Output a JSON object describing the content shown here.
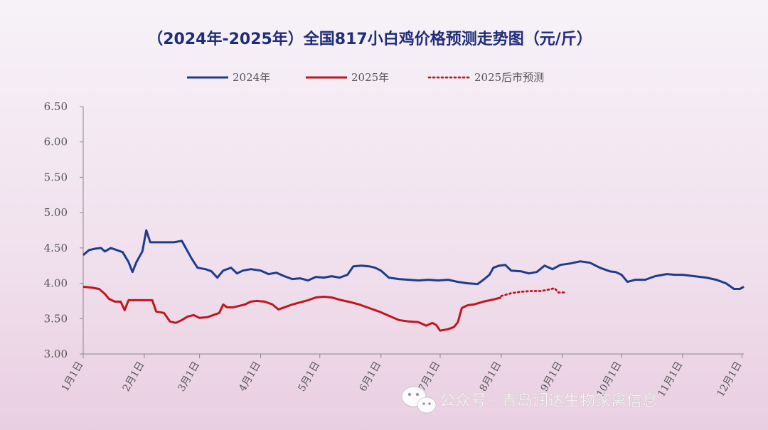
{
  "chart_data": {
    "type": "line",
    "title": "（2024年-2025年）全国817小白鸡价格预测走势图（元/斤）",
    "ylim": [
      3.0,
      6.5
    ],
    "yticks": [
      "3.00",
      "3.50",
      "4.00",
      "4.50",
      "5.00",
      "5.50",
      "6.00",
      "6.50"
    ],
    "xlim": [
      0,
      335
    ],
    "xticks": [
      {
        "x": 0,
        "label": "1月1日"
      },
      {
        "x": 31,
        "label": "2月1日"
      },
      {
        "x": 59,
        "label": "3月1日"
      },
      {
        "x": 90,
        "label": "4月1日"
      },
      {
        "x": 120,
        "label": "5月1日"
      },
      {
        "x": 151,
        "label": "6月1日"
      },
      {
        "x": 181,
        "label": "7月1日"
      },
      {
        "x": 212,
        "label": "8月1日"
      },
      {
        "x": 243,
        "label": "9月1日"
      },
      {
        "x": 273,
        "label": "10月1日"
      },
      {
        "x": 304,
        "label": "11月1日"
      },
      {
        "x": 334,
        "label": "12月1日"
      }
    ],
    "legend_position": "top",
    "grid": false,
    "series": [
      {
        "name": "2024年",
        "color": "#1c3c8c",
        "style": "solid",
        "points": [
          [
            0,
            4.4
          ],
          [
            3,
            4.47
          ],
          [
            6,
            4.49
          ],
          [
            9,
            4.5
          ],
          [
            11,
            4.45
          ],
          [
            14,
            4.5
          ],
          [
            17,
            4.47
          ],
          [
            20,
            4.44
          ],
          [
            23,
            4.3
          ],
          [
            25,
            4.16
          ],
          [
            27,
            4.3
          ],
          [
            30,
            4.45
          ],
          [
            32,
            4.75
          ],
          [
            34,
            4.58
          ],
          [
            40,
            4.58
          ],
          [
            46,
            4.58
          ],
          [
            50,
            4.6
          ],
          [
            52,
            4.5
          ],
          [
            55,
            4.35
          ],
          [
            58,
            4.22
          ],
          [
            62,
            4.2
          ],
          [
            65,
            4.17
          ],
          [
            68,
            4.08
          ],
          [
            71,
            4.18
          ],
          [
            75,
            4.22
          ],
          [
            78,
            4.14
          ],
          [
            81,
            4.18
          ],
          [
            85,
            4.2
          ],
          [
            90,
            4.18
          ],
          [
            94,
            4.13
          ],
          [
            98,
            4.15
          ],
          [
            102,
            4.1
          ],
          [
            106,
            4.06
          ],
          [
            110,
            4.07
          ],
          [
            114,
            4.04
          ],
          [
            118,
            4.09
          ],
          [
            122,
            4.08
          ],
          [
            126,
            4.1
          ],
          [
            130,
            4.08
          ],
          [
            134,
            4.12
          ],
          [
            137,
            4.24
          ],
          [
            141,
            4.25
          ],
          [
            145,
            4.24
          ],
          [
            148,
            4.22
          ],
          [
            151,
            4.18
          ],
          [
            155,
            4.08
          ],
          [
            160,
            4.06
          ],
          [
            165,
            4.05
          ],
          [
            170,
            4.04
          ],
          [
            175,
            4.05
          ],
          [
            180,
            4.04
          ],
          [
            185,
            4.05
          ],
          [
            190,
            4.02
          ],
          [
            195,
            4.0
          ],
          [
            200,
            3.99
          ],
          [
            203,
            4.05
          ],
          [
            206,
            4.12
          ],
          [
            208,
            4.22
          ],
          [
            211,
            4.25
          ],
          [
            214,
            4.26
          ],
          [
            217,
            4.18
          ],
          [
            222,
            4.17
          ],
          [
            226,
            4.14
          ],
          [
            230,
            4.16
          ],
          [
            234,
            4.25
          ],
          [
            238,
            4.2
          ],
          [
            242,
            4.26
          ],
          [
            247,
            4.28
          ],
          [
            252,
            4.31
          ],
          [
            257,
            4.29
          ],
          [
            262,
            4.22
          ],
          [
            267,
            4.17
          ],
          [
            270,
            4.16
          ],
          [
            273,
            4.12
          ],
          [
            276,
            4.02
          ],
          [
            280,
            4.05
          ],
          [
            285,
            4.05
          ],
          [
            290,
            4.1
          ],
          [
            296,
            4.13
          ],
          [
            300,
            4.12
          ],
          [
            304,
            4.12
          ],
          [
            310,
            4.1
          ],
          [
            316,
            4.08
          ],
          [
            321,
            4.05
          ],
          [
            326,
            4.0
          ],
          [
            330,
            3.92
          ],
          [
            333,
            3.92
          ],
          [
            335,
            3.95
          ]
        ]
      },
      {
        "name": "2025年",
        "color": "#c0161c",
        "style": "solid",
        "points": [
          [
            0,
            3.95
          ],
          [
            4,
            3.94
          ],
          [
            8,
            3.92
          ],
          [
            11,
            3.85
          ],
          [
            13,
            3.78
          ],
          [
            16,
            3.74
          ],
          [
            19,
            3.74
          ],
          [
            21,
            3.62
          ],
          [
            23,
            3.76
          ],
          [
            27,
            3.76
          ],
          [
            31,
            3.76
          ],
          [
            35,
            3.76
          ],
          [
            37,
            3.6
          ],
          [
            41,
            3.58
          ],
          [
            44,
            3.46
          ],
          [
            47,
            3.44
          ],
          [
            50,
            3.48
          ],
          [
            53,
            3.53
          ],
          [
            56,
            3.55
          ],
          [
            59,
            3.51
          ],
          [
            63,
            3.52
          ],
          [
            66,
            3.55
          ],
          [
            69,
            3.58
          ],
          [
            71,
            3.7
          ],
          [
            73,
            3.66
          ],
          [
            76,
            3.66
          ],
          [
            79,
            3.68
          ],
          [
            82,
            3.7
          ],
          [
            85,
            3.74
          ],
          [
            88,
            3.75
          ],
          [
            92,
            3.74
          ],
          [
            96,
            3.7
          ],
          [
            99,
            3.63
          ],
          [
            102,
            3.66
          ],
          [
            106,
            3.7
          ],
          [
            110,
            3.73
          ],
          [
            114,
            3.76
          ],
          [
            118,
            3.8
          ],
          [
            122,
            3.81
          ],
          [
            126,
            3.8
          ],
          [
            131,
            3.76
          ],
          [
            136,
            3.73
          ],
          [
            140,
            3.7
          ],
          [
            145,
            3.65
          ],
          [
            150,
            3.6
          ],
          [
            155,
            3.54
          ],
          [
            160,
            3.48
          ],
          [
            165,
            3.46
          ],
          [
            170,
            3.45
          ],
          [
            174,
            3.4
          ],
          [
            177,
            3.44
          ],
          [
            179,
            3.41
          ],
          [
            181,
            3.33
          ],
          [
            185,
            3.35
          ],
          [
            188,
            3.38
          ],
          [
            190,
            3.45
          ],
          [
            192,
            3.65
          ],
          [
            195,
            3.69
          ],
          [
            198,
            3.7
          ],
          [
            203,
            3.74
          ],
          [
            208,
            3.77
          ],
          [
            212,
            3.8
          ]
        ]
      },
      {
        "name": "2025后市预测",
        "color": "#c0161c",
        "style": "dotted",
        "points": [
          [
            212,
            3.82
          ],
          [
            217,
            3.86
          ],
          [
            222,
            3.88
          ],
          [
            227,
            3.89
          ],
          [
            232,
            3.89
          ],
          [
            236,
            3.91
          ],
          [
            239,
            3.93
          ],
          [
            241,
            3.87
          ],
          [
            244,
            3.87
          ]
        ]
      }
    ]
  },
  "watermark": {
    "icon": "wechat-icon",
    "text": "公众号 · 青岛润达生物家禽信息"
  }
}
